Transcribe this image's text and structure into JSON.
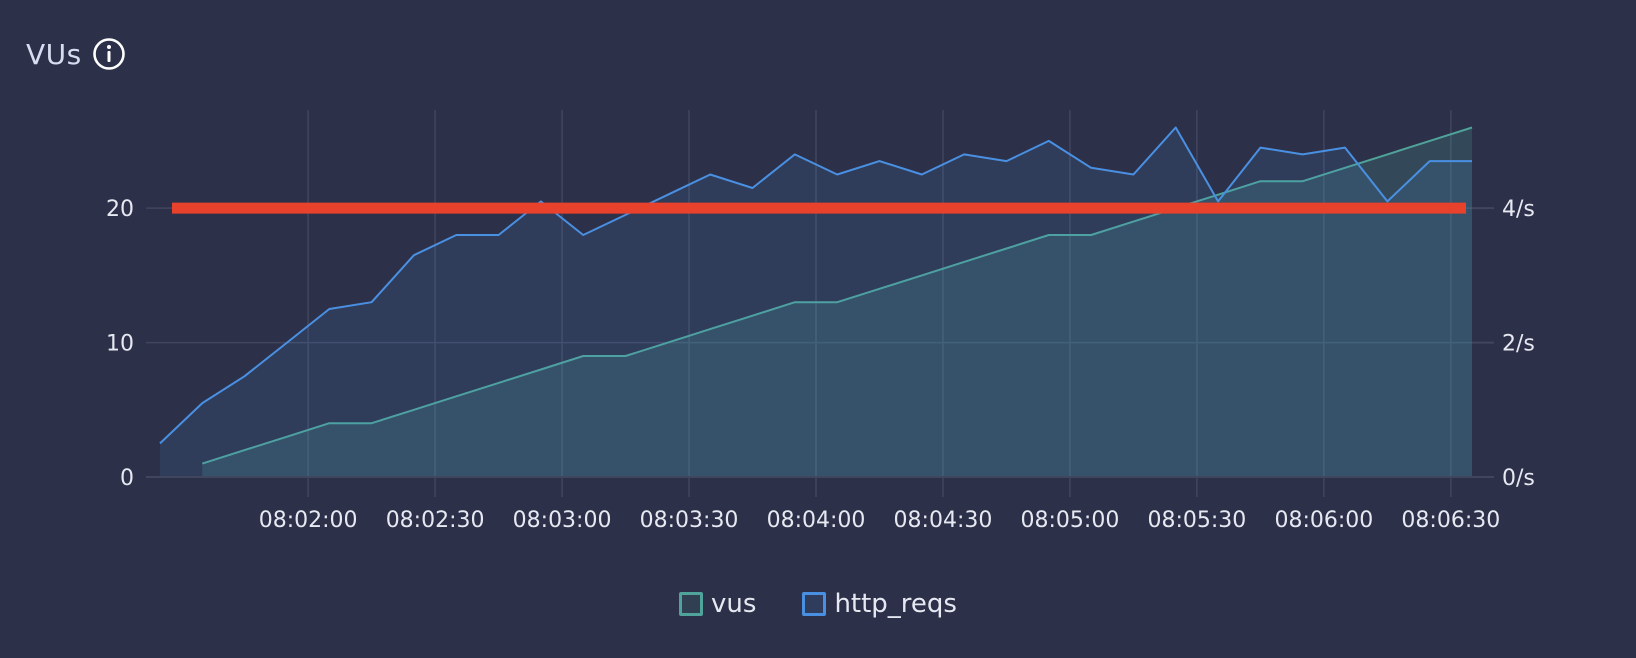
{
  "panel": {
    "title": "VUs",
    "info_icon": "info-icon"
  },
  "colors": {
    "background": "#2c3048",
    "vus": "#4fa39a",
    "http_reqs": "#4a90e2",
    "threshold": "#e8412c",
    "grid": "#41465f"
  },
  "legend": [
    {
      "label": "vus",
      "color": "#4fa39a"
    },
    {
      "label": "http_reqs",
      "color": "#4a90e2"
    }
  ],
  "chart_data": {
    "type": "line",
    "x": [
      "08:01:25",
      "08:01:35",
      "08:01:45",
      "08:01:55",
      "08:02:05",
      "08:02:15",
      "08:02:25",
      "08:02:35",
      "08:02:45",
      "08:02:55",
      "08:03:05",
      "08:03:15",
      "08:03:25",
      "08:03:35",
      "08:03:45",
      "08:03:55",
      "08:04:05",
      "08:04:15",
      "08:04:25",
      "08:04:35",
      "08:04:45",
      "08:04:55",
      "08:05:05",
      "08:05:15",
      "08:05:25",
      "08:05:35",
      "08:05:45",
      "08:05:55",
      "08:06:05",
      "08:06:15",
      "08:06:25",
      "08:06:35"
    ],
    "x_ticks": [
      "08:02:00",
      "08:02:30",
      "08:03:00",
      "08:03:30",
      "08:04:00",
      "08:04:30",
      "08:05:00",
      "08:05:30",
      "08:06:00",
      "08:06:30"
    ],
    "series": [
      {
        "name": "vus",
        "axis": "left",
        "values": [
          null,
          1,
          2,
          3,
          4,
          4,
          5,
          6,
          7,
          8,
          9,
          9,
          10,
          11,
          12,
          13,
          13,
          14,
          15,
          16,
          17,
          18,
          18,
          19,
          20,
          21,
          22,
          22,
          23,
          24,
          25,
          26
        ]
      },
      {
        "name": "http_reqs",
        "axis": "right",
        "values": [
          0.5,
          1.1,
          1.5,
          2.0,
          2.5,
          2.6,
          3.3,
          3.6,
          3.6,
          4.1,
          3.6,
          3.9,
          4.2,
          4.5,
          4.3,
          4.8,
          4.5,
          4.7,
          4.5,
          4.8,
          4.7,
          5.0,
          4.6,
          4.5,
          5.2,
          4.1,
          4.9,
          4.8,
          4.9,
          4.1,
          4.7,
          4.7
        ]
      }
    ],
    "threshold": {
      "value": 4,
      "axis": "right"
    },
    "y_left": {
      "ticks": [
        0,
        10,
        20
      ],
      "ylim": [
        0,
        27.3
      ]
    },
    "y_right": {
      "ticks": [
        "0/s",
        "2/s",
        "4/s"
      ],
      "tick_values": [
        0,
        2,
        4
      ],
      "ylim": [
        0,
        5.46
      ]
    },
    "grid": true,
    "legend_position": "bottom-center"
  }
}
